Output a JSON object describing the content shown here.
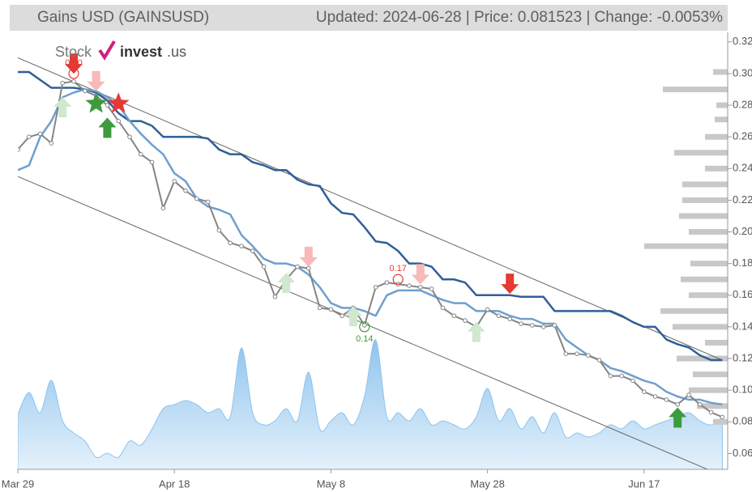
{
  "header": {
    "title": "Gains USD (GAINSUSD)",
    "info": "Updated: 2024-06-28 | Price: 0.081523 | Change: -0.0053%"
  },
  "logo": {
    "stock": "Stock",
    "invest": "invest",
    "domain": ".us"
  },
  "chart_data": {
    "type": "line",
    "categories": [
      "Mar 29",
      null,
      null,
      null,
      null,
      null,
      null,
      null,
      null,
      null,
      null,
      null,
      null,
      null,
      "Apr 18",
      null,
      null,
      null,
      null,
      null,
      null,
      null,
      null,
      null,
      null,
      null,
      null,
      null,
      "May 8",
      null,
      null,
      null,
      null,
      null,
      null,
      null,
      null,
      null,
      null,
      null,
      null,
      null,
      "May 28",
      null,
      null,
      null,
      null,
      null,
      null,
      null,
      null,
      null,
      null,
      null,
      null,
      null,
      "Jun 17",
      null,
      null,
      null,
      null,
      null,
      null,
      null
    ],
    "ylim": [
      0.05,
      0.325
    ],
    "yticks": [
      0.06,
      0.08,
      {
        "value": 0.1,
        "label": "0.10"
      },
      0.12,
      0.14,
      0.16,
      0.18,
      {
        "value": 0.2,
        "label": "0.20"
      },
      0.22,
      0.24,
      0.26,
      0.28,
      {
        "value": 0.3,
        "label": "0.30"
      },
      0.32
    ],
    "series": [
      {
        "color": "#2f5f97",
        "width": 2.5,
        "values": [
          0.301,
          0.301,
          0.296,
          0.291,
          0.291,
          0.291,
          0.29,
          0.288,
          0.283,
          0.275,
          0.27,
          0.27,
          0.267,
          0.26,
          0.26,
          0.26,
          0.26,
          0.259,
          0.252,
          0.249,
          0.249,
          0.244,
          0.242,
          0.239,
          0.239,
          0.233,
          0.23,
          0.229,
          0.218,
          0.212,
          0.211,
          0.203,
          0.194,
          0.193,
          0.188,
          0.18,
          0.18,
          0.178,
          0.17,
          0.17,
          0.168,
          0.16,
          0.16,
          0.16,
          0.16,
          0.159,
          0.159,
          0.159,
          0.15,
          0.15,
          0.15,
          0.15,
          0.15,
          0.15,
          0.147,
          0.143,
          0.14,
          0.14,
          0.132,
          0.129,
          0.127,
          0.122,
          0.119,
          0.119
        ]
      },
      {
        "color": "#6f9fcf",
        "width": 2.5,
        "values": [
          0.239,
          0.242,
          0.26,
          0.27,
          0.285,
          0.288,
          0.29,
          0.289,
          0.285,
          0.28,
          0.27,
          0.262,
          0.255,
          0.249,
          0.237,
          0.232,
          0.221,
          0.216,
          0.214,
          0.211,
          0.198,
          0.191,
          0.183,
          0.18,
          0.18,
          0.178,
          0.173,
          0.165,
          0.155,
          0.152,
          0.152,
          0.15,
          0.147,
          0.16,
          0.163,
          0.163,
          0.163,
          0.16,
          0.157,
          0.155,
          0.155,
          0.15,
          0.15,
          0.15,
          0.147,
          0.145,
          0.145,
          0.142,
          0.142,
          0.132,
          0.127,
          0.122,
          0.119,
          0.114,
          0.112,
          0.109,
          0.106,
          0.104,
          0.099,
          0.096,
          0.094,
          0.094,
          0.092,
          0.091
        ]
      },
      {
        "color": "#858585",
        "width": 2,
        "markers": true,
        "values": [
          0.252,
          0.26,
          0.262,
          0.256,
          0.294,
          0.295,
          0.289,
          0.286,
          0.28,
          0.27,
          0.26,
          0.249,
          0.244,
          0.215,
          0.232,
          0.226,
          0.221,
          0.219,
          0.201,
          0.193,
          0.191,
          0.188,
          0.178,
          0.159,
          0.17,
          0.178,
          0.177,
          0.152,
          0.151,
          0.147,
          0.152,
          0.141,
          0.165,
          0.168,
          0.167,
          0.166,
          0.165,
          0.164,
          0.152,
          0.147,
          0.144,
          0.14,
          0.151,
          0.147,
          0.145,
          0.142,
          0.141,
          0.14,
          0.141,
          0.123,
          0.123,
          0.122,
          0.119,
          0.109,
          0.109,
          0.106,
          0.099,
          0.096,
          0.094,
          0.091,
          0.097,
          0.091,
          0.086,
          0.083
        ]
      }
    ],
    "channel": {
      "color": "#666",
      "lines": [
        [
          0.31,
          0.119
        ],
        [
          0.235,
          0.046
        ]
      ]
    },
    "volume": {
      "color": "#8fc4ee",
      "values": [
        68,
        95,
        70,
        110,
        60,
        45,
        35,
        15,
        20,
        15,
        35,
        30,
        50,
        75,
        80,
        85,
        80,
        70,
        75,
        65,
        150,
        70,
        55,
        60,
        75,
        60,
        120,
        50,
        60,
        70,
        55,
        90,
        160,
        65,
        70,
        60,
        75,
        55,
        60,
        55,
        50,
        65,
        100,
        60,
        75,
        50,
        65,
        45,
        70,
        40,
        45,
        40,
        45,
        55,
        50,
        60,
        50,
        55,
        60,
        65,
        70,
        60,
        55,
        65
      ]
    },
    "volume_profile": {
      "color": "#c8c8c8",
      "prices": [
        0.301,
        0.29,
        0.28,
        0.271,
        0.26,
        0.25,
        0.24,
        0.23,
        0.22,
        0.21,
        0.2,
        0.191,
        0.18,
        0.17,
        0.16,
        0.15,
        0.14,
        0.13,
        0.12,
        0.11,
        0.1,
        0.09,
        0.08
      ],
      "values": [
        18,
        80,
        14,
        16,
        28,
        66,
        28,
        56,
        56,
        60,
        48,
        103,
        46,
        58,
        48,
        83,
        68,
        28,
        63,
        43,
        48,
        38,
        18
      ]
    },
    "signals": [
      {
        "i": 4,
        "value": 0.279,
        "color": "#cfe8cf",
        "shape": "up"
      },
      {
        "i": 5,
        "value": 0.306,
        "color": "#e53935",
        "shape": "down"
      },
      {
        "i": 7,
        "value": 0.295,
        "color": "#f7b9b9",
        "shape": "down"
      },
      {
        "i": 7,
        "value": 0.281,
        "color": "#3d9b3d",
        "shape": "star"
      },
      {
        "i": 9,
        "value": 0.281,
        "color": "#e53935",
        "shape": "star"
      },
      {
        "i": 8,
        "value": 0.266,
        "color": "#3d9b3d",
        "shape": "up"
      },
      {
        "i": 26,
        "value": 0.184,
        "color": "#f7b9b9",
        "shape": "down"
      },
      {
        "i": 24,
        "value": 0.168,
        "color": "#cfe8cf",
        "shape": "up"
      },
      {
        "i": 30,
        "value": 0.147,
        "color": "#cfe8cf",
        "shape": "up"
      },
      {
        "i": 36,
        "value": 0.173,
        "color": "#f7b9b9",
        "shape": "down"
      },
      {
        "i": 41,
        "value": 0.137,
        "color": "#cfe8cf",
        "shape": "up"
      },
      {
        "i": 44,
        "value": 0.167,
        "color": "#e53935",
        "shape": "down"
      },
      {
        "i": 59,
        "value": 0.083,
        "color": "#3d9b3d",
        "shape": "up"
      }
    ],
    "annotations": [
      {
        "i": 5,
        "value": 0.3,
        "label": "0.30",
        "color": "#e53935",
        "place": "above"
      },
      {
        "i": 34,
        "value": 0.17,
        "label": "0.17",
        "color": "#e53935",
        "place": "above"
      },
      {
        "i": 31,
        "value": 0.14,
        "label": "0.14",
        "color": "#3d9b3d",
        "place": "below"
      }
    ]
  }
}
